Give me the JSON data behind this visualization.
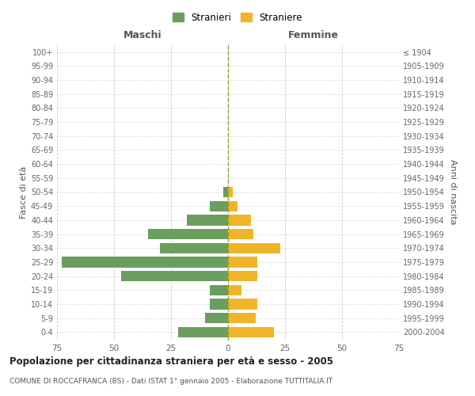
{
  "age_groups": [
    "0-4",
    "5-9",
    "10-14",
    "15-19",
    "20-24",
    "25-29",
    "30-34",
    "35-39",
    "40-44",
    "45-49",
    "50-54",
    "55-59",
    "60-64",
    "65-69",
    "70-74",
    "75-79",
    "80-84",
    "85-89",
    "90-94",
    "95-99",
    "100+"
  ],
  "birth_years": [
    "2000-2004",
    "1995-1999",
    "1990-1994",
    "1985-1989",
    "1980-1984",
    "1975-1979",
    "1970-1974",
    "1965-1969",
    "1960-1964",
    "1955-1959",
    "1950-1954",
    "1945-1949",
    "1940-1944",
    "1935-1939",
    "1930-1934",
    "1925-1929",
    "1920-1924",
    "1915-1919",
    "1910-1914",
    "1905-1909",
    "≤ 1904"
  ],
  "males": [
    22,
    10,
    8,
    8,
    47,
    73,
    30,
    35,
    18,
    8,
    2,
    0,
    0,
    0,
    0,
    0,
    0,
    0,
    0,
    0,
    0
  ],
  "females": [
    20,
    12,
    13,
    6,
    13,
    13,
    23,
    11,
    10,
    4,
    2,
    0,
    0,
    0,
    0,
    0,
    0,
    0,
    0,
    0,
    0
  ],
  "male_color": "#6a9e5e",
  "female_color": "#f0b429",
  "center_line_color": "#9e9a2a",
  "grid_color": "#cccccc",
  "xlim": 75,
  "title": "Popolazione per cittadinanza straniera per età e sesso - 2005",
  "subtitle": "COMUNE DI ROCCAFRANCA (BS) - Dati ISTAT 1° gennaio 2005 - Elaborazione TUTTITALIA.IT",
  "xlabel_left": "Maschi",
  "xlabel_right": "Femmine",
  "ylabel_left": "Fasce di età",
  "ylabel_right": "Anni di nascita",
  "legend_stranieri": "Stranieri",
  "legend_straniere": "Straniere",
  "xticks": [
    -75,
    -50,
    -25,
    0,
    25,
    50,
    75
  ],
  "xtick_labels": [
    "75",
    "50",
    "25",
    "0",
    "25",
    "50",
    "75"
  ],
  "background_color": "#ffffff",
  "bar_height": 0.75
}
